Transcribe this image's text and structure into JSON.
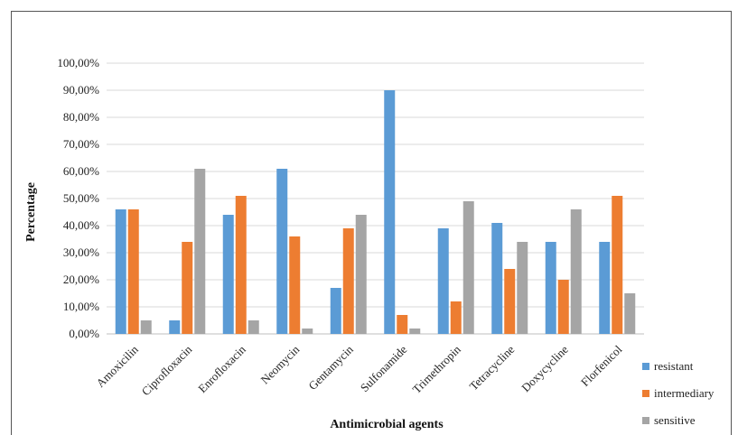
{
  "chart_data": {
    "type": "bar",
    "xlabel": "Antimicrobial agents",
    "ylabel": "Percentage",
    "ylim": [
      0,
      100
    ],
    "yticks": [
      "0,00%",
      "10,00%",
      "20,00%",
      "30,00%",
      "40,00%",
      "50,00%",
      "60,00%",
      "70,00%",
      "80,00%",
      "90,00%",
      "100,00%"
    ],
    "categories": [
      "Amoxicilin",
      "Ciprofloxacin",
      "Enrofloxacin",
      "Neomycin",
      "Gentamycin",
      "Sulfonamide",
      "Trimethropin",
      "Tetracycline",
      "Doxycycline",
      "Florfenicol"
    ],
    "series": [
      {
        "name": "resistant",
        "color": "#5b9bd5",
        "values": [
          46,
          5,
          44,
          61,
          17,
          90,
          39,
          41,
          34,
          34
        ]
      },
      {
        "name": "intermediary",
        "color": "#ed7d31",
        "values": [
          46,
          34,
          51,
          36,
          39,
          7,
          12,
          24,
          20,
          51
        ]
      },
      {
        "name": "sensitive",
        "color": "#a5a5a5",
        "values": [
          5,
          61,
          5,
          2,
          44,
          2,
          49,
          34,
          46,
          15
        ]
      }
    ],
    "grid": true,
    "legend": "bottom-right"
  }
}
